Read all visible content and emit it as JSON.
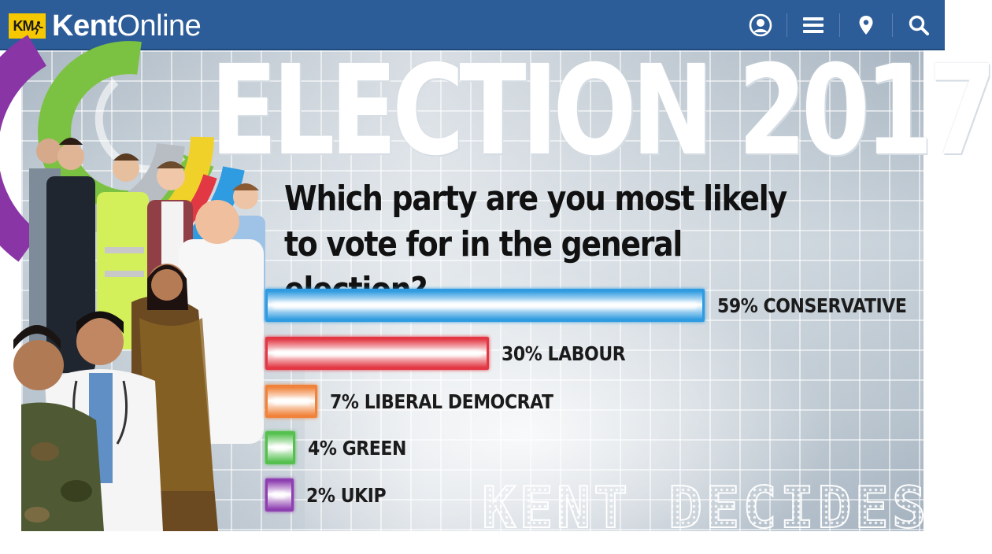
{
  "header": {
    "badge_text": "KM",
    "brand_bold": "Kent",
    "brand_regular": "Online",
    "brand_color": "#2d5d99",
    "badge_color": "#f6c800",
    "nav": [
      {
        "name": "account",
        "icon": "user-circle-icon"
      },
      {
        "name": "menu",
        "icon": "hamburger-menu-icon"
      },
      {
        "name": "location",
        "icon": "map-pin-icon"
      },
      {
        "name": "search",
        "icon": "search-icon"
      }
    ]
  },
  "graphic": {
    "title": "ELECTION 2017",
    "question": "Which party are you most likely to vote for in the general election?",
    "watermark": "KENT DECIDES"
  },
  "chart_data": {
    "type": "bar",
    "orientation": "horizontal",
    "title": "Which party are you most likely to vote for in the general election?",
    "categories": [
      "CONSERVATIVE",
      "LABOUR",
      "LIBERAL DEMOCRAT",
      "GREEN",
      "UKIP"
    ],
    "values": [
      59,
      30,
      7,
      4,
      2
    ],
    "labels": [
      "59% CONSERVATIVE",
      "30% LABOUR",
      "7% LIBERAL DEMOCRAT",
      "4% GREEN",
      "2% UKIP"
    ],
    "unit": "%",
    "colors": [
      "#2f9be0",
      "#e23844",
      "#f0823a",
      "#55c04e",
      "#8e3fb0"
    ],
    "grid": false
  }
}
